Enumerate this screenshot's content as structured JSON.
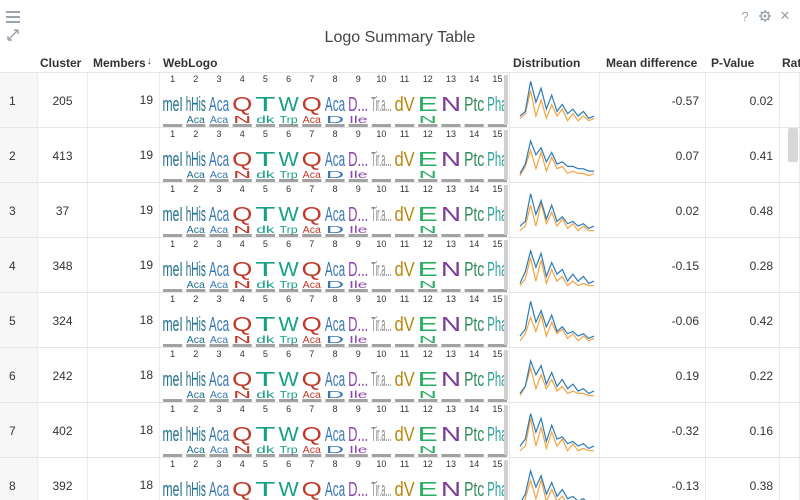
{
  "toolbar": {
    "menu_icon": "hamburger-icon",
    "expand_icon": "expand-icon",
    "help_label": "?",
    "settings_icon": "gear-icon",
    "close_label": "✕"
  },
  "title": "Logo Summary Table",
  "columns": {
    "cluster": "Cluster",
    "members": "Members",
    "members_sort": "↓",
    "weblogo": "WebLogo",
    "distribution": "Distribution",
    "mean_difference": "Mean difference",
    "p_value": "P-Value",
    "ratio": "Rat"
  },
  "logo_positions": [
    "1",
    "2",
    "3",
    "4",
    "5",
    "6",
    "7",
    "8",
    "9",
    "10",
    "11",
    "12",
    "13",
    "14",
    "15"
  ],
  "logo_letters": [
    {
      "top": "meI",
      "bottom": "",
      "color": "#1f6e8c"
    },
    {
      "top": "hHis",
      "bottom": "Aca",
      "color": "#1f6e8c"
    },
    {
      "top": "Aca",
      "bottom": "Aca",
      "color": "#3a78b5"
    },
    {
      "top": "Q",
      "bottom": "N",
      "color": "#c0392b"
    },
    {
      "top": "T",
      "bottom": "dk",
      "color": "#16a085"
    },
    {
      "top": "W",
      "bottom": "Trp",
      "color": "#16a085"
    },
    {
      "top": "Q",
      "bottom": "Aca",
      "color": "#c0392b"
    },
    {
      "top": "Aca",
      "bottom": "D",
      "color": "#3a78b5"
    },
    {
      "top": "D...",
      "bottom": "Ile",
      "color": "#8e44ad"
    },
    {
      "top": "Tir.a...",
      "bottom": "",
      "color": "#888888"
    },
    {
      "top": "dV",
      "bottom": "",
      "color": "#b8860b"
    },
    {
      "top": "E",
      "bottom": "N",
      "color": "#27ae60"
    },
    {
      "top": "N",
      "bottom": "",
      "color": "#7d3c98"
    },
    {
      "top": "Ptc",
      "bottom": "",
      "color": "#2e8b57"
    },
    {
      "top": "Pha",
      "bottom": "",
      "color": "#2aa198"
    }
  ],
  "rows": [
    {
      "idx": "1",
      "cluster": "205",
      "members": "19",
      "mean": "-0.57",
      "pval": "0.02",
      "blue": [
        3,
        5,
        18,
        9,
        15,
        6,
        12,
        5,
        8,
        4,
        6,
        3,
        5,
        2,
        3
      ],
      "orange": [
        2,
        4,
        14,
        3,
        10,
        2,
        8,
        3,
        6,
        1,
        4,
        1,
        3,
        1,
        2
      ]
    },
    {
      "idx": "2",
      "cluster": "413",
      "members": "19",
      "mean": "0.07",
      "pval": "0.41",
      "blue": [
        2,
        6,
        16,
        10,
        13,
        7,
        11,
        6,
        7,
        5,
        5,
        4,
        4,
        3,
        3
      ],
      "orange": [
        1,
        5,
        12,
        4,
        11,
        3,
        9,
        4,
        5,
        2,
        3,
        2,
        2,
        1,
        2
      ]
    },
    {
      "idx": "3",
      "cluster": "37",
      "members": "19",
      "mean": "0.02",
      "pval": "0.48",
      "blue": [
        3,
        5,
        17,
        8,
        14,
        6,
        12,
        5,
        7,
        4,
        5,
        3,
        4,
        2,
        3
      ],
      "orange": [
        1,
        3,
        12,
        3,
        13,
        4,
        9,
        3,
        6,
        2,
        4,
        1,
        3,
        1,
        1
      ]
    },
    {
      "idx": "4",
      "cluster": "348",
      "members": "19",
      "mean": "-0.15",
      "pval": "0.28",
      "blue": [
        2,
        7,
        16,
        9,
        15,
        5,
        11,
        6,
        8,
        3,
        6,
        3,
        5,
        2,
        3
      ],
      "orange": [
        1,
        4,
        13,
        3,
        12,
        2,
        8,
        3,
        5,
        1,
        3,
        1,
        2,
        1,
        1
      ]
    },
    {
      "idx": "5",
      "cluster": "324",
      "members": "18",
      "mean": "-0.06",
      "pval": "0.42",
      "blue": [
        3,
        6,
        18,
        9,
        14,
        7,
        12,
        5,
        7,
        4,
        5,
        3,
        4,
        2,
        3
      ],
      "orange": [
        1,
        4,
        11,
        5,
        12,
        3,
        9,
        4,
        6,
        2,
        4,
        1,
        3,
        1,
        2
      ]
    },
    {
      "idx": "6",
      "cluster": "242",
      "members": "18",
      "mean": "0.19",
      "pval": "0.22",
      "blue": [
        2,
        5,
        16,
        10,
        14,
        6,
        11,
        5,
        8,
        4,
        6,
        3,
        4,
        2,
        3
      ],
      "orange": [
        1,
        5,
        13,
        4,
        10,
        4,
        8,
        3,
        5,
        2,
        3,
        2,
        2,
        1,
        1
      ]
    },
    {
      "idx": "7",
      "cluster": "402",
      "members": "18",
      "mean": "-0.32",
      "pval": "0.16",
      "blue": [
        3,
        6,
        17,
        9,
        15,
        5,
        12,
        6,
        7,
        4,
        5,
        3,
        4,
        2,
        3
      ],
      "orange": [
        1,
        3,
        15,
        3,
        11,
        2,
        9,
        3,
        6,
        1,
        4,
        1,
        2,
        1,
        1
      ]
    },
    {
      "idx": "8",
      "cluster": "392",
      "members": "18",
      "mean": "-0.13",
      "pval": "0.38",
      "blue": [
        2,
        6,
        16,
        9,
        14,
        6,
        11,
        5,
        8,
        4,
        5,
        3,
        4,
        2,
        3
      ],
      "orange": [
        1,
        4,
        12,
        4,
        12,
        3,
        8,
        3,
        5,
        2,
        3,
        1,
        2,
        1,
        1
      ]
    }
  ],
  "colors": {
    "blue_line": "#2b7bba",
    "orange_line": "#f4a340",
    "header_text": "#333333",
    "index_bg": "#f7f7f7"
  }
}
